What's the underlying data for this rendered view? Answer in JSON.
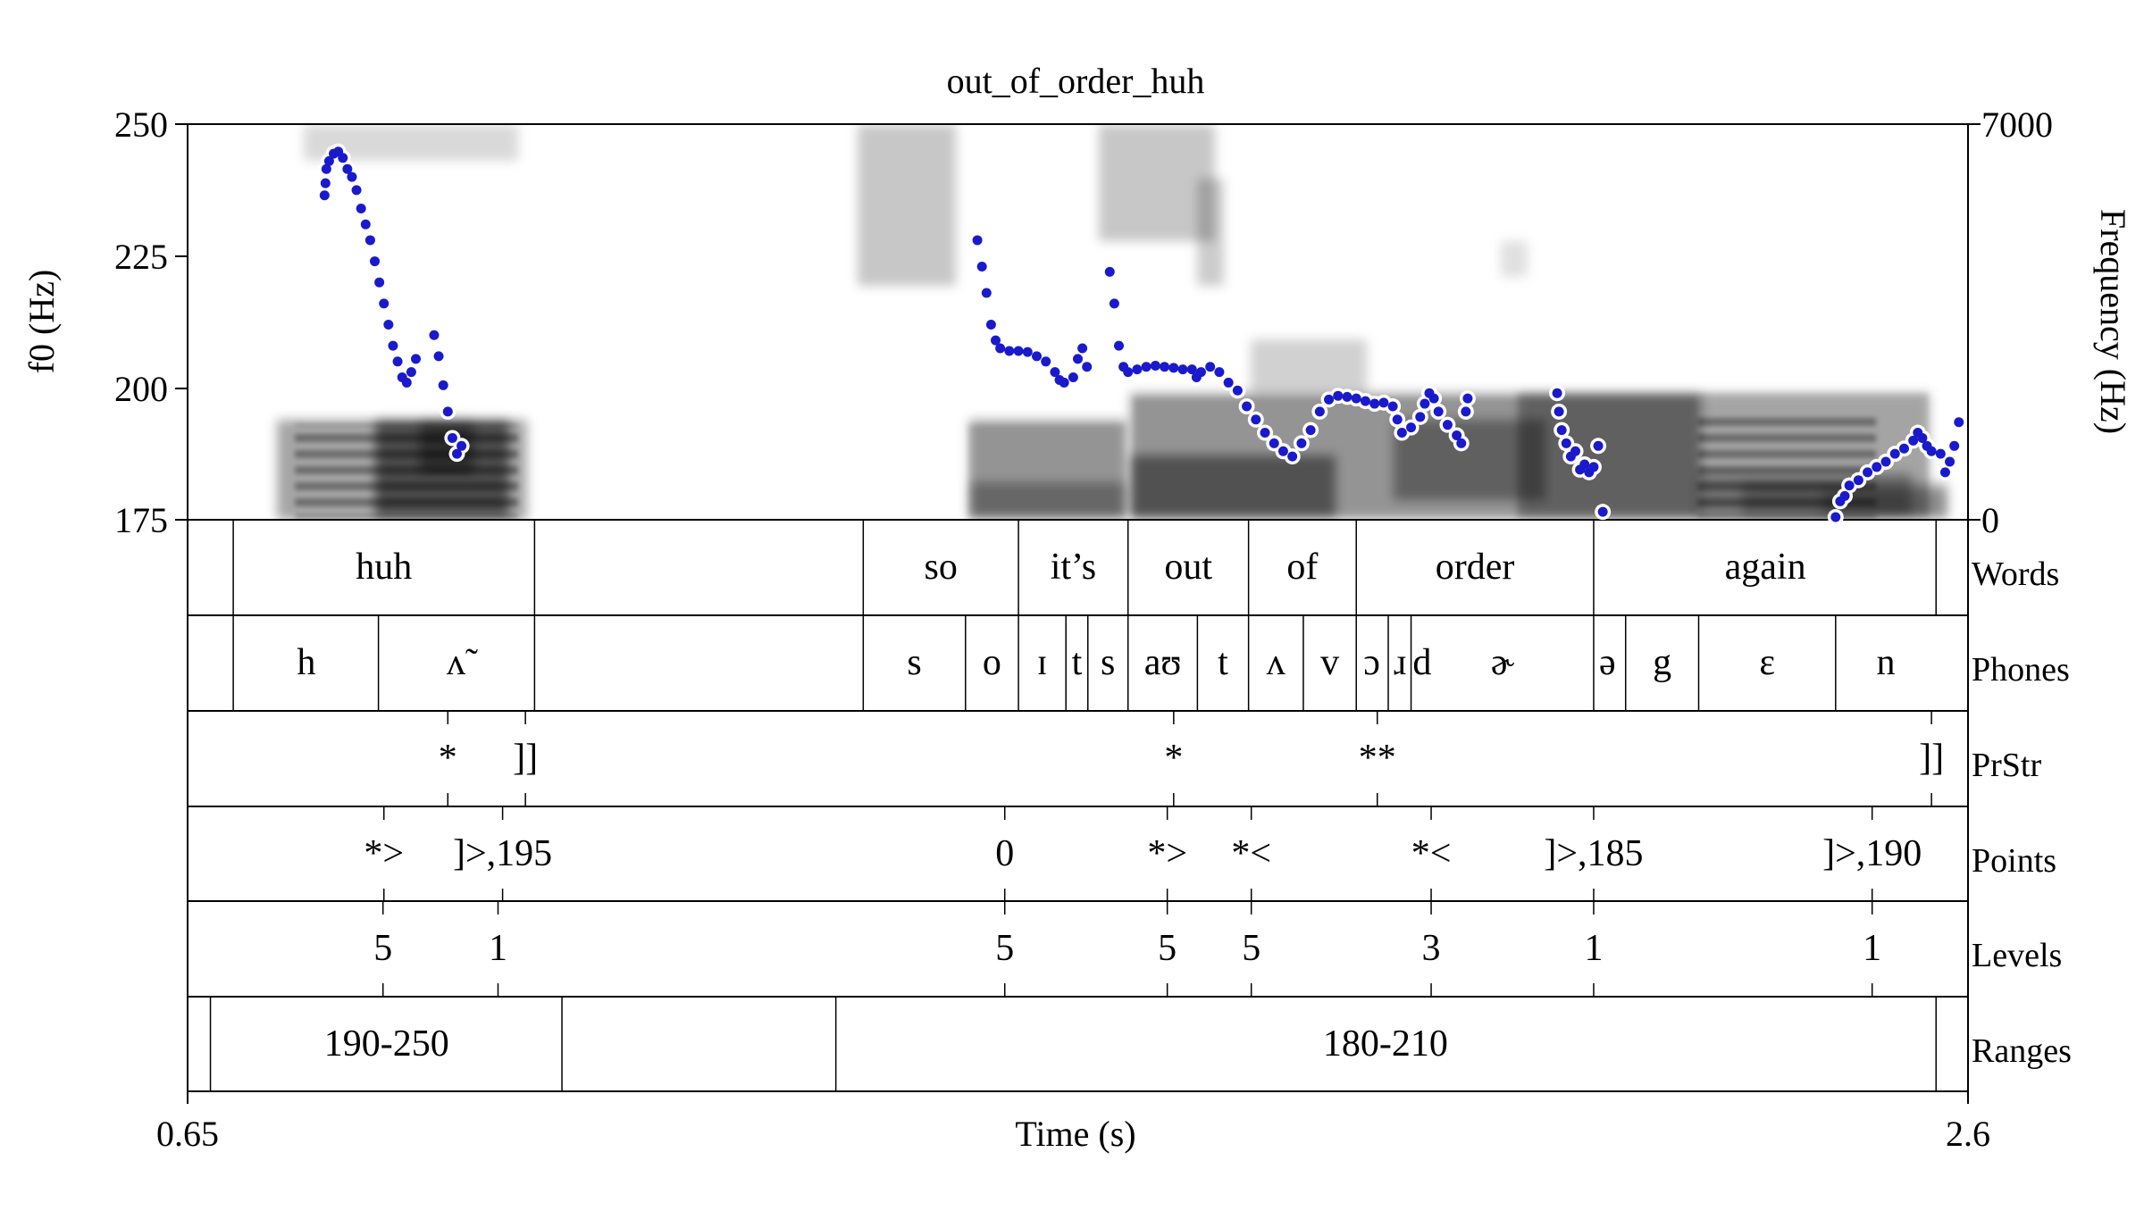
{
  "chart_data": {
    "type": "line",
    "title": "out_of_order_huh",
    "xlabel": "Time (s)",
    "ylabel": "f0 (Hz)",
    "ylabel_right": "Frequency (Hz)",
    "xlim": [
      0.65,
      2.6
    ],
    "ylim": [
      175,
      250
    ],
    "ylim_right": [
      0,
      7000
    ],
    "x_ticks": [
      "0.65",
      "2.6"
    ],
    "y_ticks": [
      "175",
      "200",
      "225",
      "250"
    ],
    "y_ticks_right": [
      "0",
      "7000"
    ],
    "series_color": "#1a1acc",
    "f0_segments": [
      [
        [
          0.8,
          236.5
        ],
        [
          0.801,
          238.8
        ],
        [
          0.802,
          241.5
        ],
        [
          0.805,
          243.0
        ],
        [
          0.81,
          244.4
        ],
        [
          0.815,
          244.8
        ],
        [
          0.82,
          243.6
        ],
        [
          0.825,
          241.5
        ],
        [
          0.83,
          240.0
        ],
        [
          0.835,
          237.5
        ],
        [
          0.84,
          234.0
        ],
        [
          0.845,
          231.0
        ],
        [
          0.85,
          228.0
        ],
        [
          0.855,
          224.0
        ],
        [
          0.86,
          220.0
        ],
        [
          0.865,
          216.0
        ],
        [
          0.87,
          212.0
        ],
        [
          0.875,
          208.0
        ],
        [
          0.88,
          205.0
        ],
        [
          0.885,
          202.0
        ],
        [
          0.89,
          201.0
        ],
        [
          0.895,
          203.0
        ],
        [
          0.9,
          205.5
        ]
      ],
      [
        [
          0.92,
          210.0
        ],
        [
          0.925,
          206.0
        ],
        [
          0.93,
          200.5
        ],
        [
          0.935,
          195.5
        ],
        [
          0.94,
          190.5
        ],
        [
          0.945,
          187.5
        ],
        [
          0.95,
          189.0
        ]
      ],
      [
        [
          1.515,
          228.0
        ],
        [
          1.52,
          223.0
        ],
        [
          1.525,
          218.0
        ],
        [
          1.53,
          212.0
        ],
        [
          1.535,
          209.0
        ],
        [
          1.54,
          207.5
        ],
        [
          1.55,
          207.0
        ],
        [
          1.56,
          207.0
        ],
        [
          1.57,
          206.8
        ],
        [
          1.58,
          206.0
        ],
        [
          1.59,
          205.0
        ],
        [
          1.6,
          203.0
        ],
        [
          1.605,
          201.5
        ],
        [
          1.61,
          201.0
        ],
        [
          1.62,
          202.0
        ],
        [
          1.625,
          205.5
        ],
        [
          1.63,
          207.5
        ],
        [
          1.635,
          204.0
        ]
      ],
      [
        [
          1.66,
          222.0
        ],
        [
          1.665,
          216.0
        ],
        [
          1.67,
          208.0
        ],
        [
          1.675,
          204.0
        ],
        [
          1.68,
          203.0
        ],
        [
          1.69,
          203.5
        ],
        [
          1.7,
          204.0
        ],
        [
          1.71,
          204.2
        ],
        [
          1.72,
          204.0
        ],
        [
          1.73,
          203.8
        ],
        [
          1.74,
          203.5
        ],
        [
          1.75,
          203.5
        ],
        [
          1.755,
          202.0
        ],
        [
          1.76,
          203.0
        ],
        [
          1.77,
          204.0
        ],
        [
          1.78,
          203.0
        ],
        [
          1.79,
          201.0
        ],
        [
          1.8,
          199.5
        ],
        [
          1.81,
          196.5
        ],
        [
          1.82,
          194.0
        ],
        [
          1.83,
          191.5
        ],
        [
          1.84,
          189.5
        ],
        [
          1.85,
          188.0
        ],
        [
          1.86,
          187.0
        ],
        [
          1.87,
          189.5
        ],
        [
          1.88,
          192.0
        ],
        [
          1.89,
          195.5
        ],
        [
          1.9,
          197.8
        ],
        [
          1.91,
          198.5
        ],
        [
          1.92,
          198.3
        ],
        [
          1.93,
          198.0
        ],
        [
          1.94,
          197.5
        ],
        [
          1.95,
          197.0
        ],
        [
          1.96,
          197.2
        ],
        [
          1.97,
          196.5
        ],
        [
          1.975,
          194.0
        ],
        [
          1.98,
          191.5
        ],
        [
          1.99,
          192.5
        ],
        [
          2.0,
          194.5
        ],
        [
          2.005,
          197.0
        ],
        [
          2.01,
          199.0
        ],
        [
          2.015,
          198.0
        ],
        [
          2.02,
          195.5
        ],
        [
          2.03,
          193.0
        ],
        [
          2.04,
          191.0
        ],
        [
          2.045,
          189.5
        ],
        [
          2.05,
          195.5
        ],
        [
          2.052,
          198.0
        ]
      ],
      [
        [
          2.15,
          199.0
        ],
        [
          2.152,
          195.5
        ],
        [
          2.155,
          192.0
        ],
        [
          2.16,
          189.5
        ],
        [
          2.165,
          187.0
        ],
        [
          2.17,
          188.0
        ],
        [
          2.175,
          184.5
        ],
        [
          2.18,
          185.5
        ],
        [
          2.185,
          184.0
        ],
        [
          2.19,
          185.0
        ],
        [
          2.195,
          189.0
        ],
        [
          2.2,
          176.5
        ]
      ],
      [
        [
          2.455,
          175.5
        ],
        [
          2.46,
          178.5
        ],
        [
          2.465,
          179.5
        ],
        [
          2.47,
          181.5
        ],
        [
          2.48,
          182.5
        ],
        [
          2.49,
          184.0
        ],
        [
          2.5,
          185.0
        ],
        [
          2.51,
          186.0
        ],
        [
          2.52,
          187.5
        ],
        [
          2.53,
          188.5
        ],
        [
          2.54,
          190.0
        ],
        [
          2.545,
          191.5
        ],
        [
          2.55,
          190.5
        ],
        [
          2.555,
          189.0
        ],
        [
          2.56,
          188.0
        ],
        [
          2.57,
          187.5
        ],
        [
          2.575,
          184.0
        ],
        [
          2.58,
          186.0
        ],
        [
          2.585,
          189.0
        ],
        [
          2.59,
          193.5
        ]
      ]
    ]
  },
  "tiers": [
    {
      "name": "Words",
      "type": "interval",
      "boundaries": [
        0.7,
        1.03,
        1.39,
        1.56,
        1.68,
        1.812,
        1.93,
        2.19,
        2.565
      ],
      "labels": [
        {
          "x": 0.865,
          "text": "huh"
        },
        {
          "x": 1.475,
          "text": "so"
        },
        {
          "x": 1.62,
          "text": "it’s"
        },
        {
          "x": 1.746,
          "text": "out"
        },
        {
          "x": 1.871,
          "text": "of"
        },
        {
          "x": 2.06,
          "text": "order"
        },
        {
          "x": 2.378,
          "text": "again"
        }
      ]
    },
    {
      "name": "Phones",
      "type": "interval",
      "boundaries": [
        0.7,
        0.859,
        1.03,
        1.39,
        1.502,
        1.56,
        1.612,
        1.636,
        1.68,
        1.756,
        1.812,
        1.872,
        1.93,
        1.965,
        1.99,
        2.19,
        2.225,
        2.305,
        2.455
      ],
      "labels": [
        {
          "x": 0.78,
          "text": "h"
        },
        {
          "x": 0.944,
          "text": "ʌ̃"
        },
        {
          "x": 1.446,
          "text": "s"
        },
        {
          "x": 1.531,
          "text": "o"
        },
        {
          "x": 1.586,
          "text": "ɪ"
        },
        {
          "x": 1.624,
          "text": "t"
        },
        {
          "x": 1.658,
          "text": "s"
        },
        {
          "x": 1.718,
          "text": "aʊ"
        },
        {
          "x": 1.784,
          "text": "t"
        },
        {
          "x": 1.842,
          "text": "ʌ"
        },
        {
          "x": 1.901,
          "text": "v"
        },
        {
          "x": 1.947,
          "text": "ɔ"
        },
        {
          "x": 1.978,
          "text": "ɹ"
        },
        {
          "x": 2.002,
          "text": "d"
        },
        {
          "x": 2.09,
          "text": "ɚ"
        },
        {
          "x": 2.205,
          "text": "ə"
        },
        {
          "x": 2.265,
          "text": "g"
        },
        {
          "x": 2.38,
          "text": "ɛ"
        },
        {
          "x": 2.51,
          "text": "n"
        }
      ]
    },
    {
      "name": "PrStr",
      "type": "point",
      "marks": [
        {
          "x": 0.935,
          "text": "*"
        },
        {
          "x": 1.02,
          "text": "]]"
        },
        {
          "x": 1.73,
          "text": "*"
        },
        {
          "x": 1.953,
          "text": "**"
        },
        {
          "x": 2.56,
          "text": "]]"
        }
      ]
    },
    {
      "name": "Points",
      "type": "point",
      "marks": [
        {
          "x": 0.865,
          "text": "*>"
        },
        {
          "x": 0.995,
          "text": "]>,195"
        },
        {
          "x": 1.545,
          "text": "0"
        },
        {
          "x": 1.723,
          "text": "*>"
        },
        {
          "x": 1.815,
          "text": "*<"
        },
        {
          "x": 2.012,
          "text": "*<"
        },
        {
          "x": 2.19,
          "text": "]>,185"
        },
        {
          "x": 2.495,
          "text": "]>,190"
        }
      ]
    },
    {
      "name": "Levels",
      "type": "point",
      "marks": [
        {
          "x": 0.864,
          "text": "5"
        },
        {
          "x": 0.99,
          "text": "1"
        },
        {
          "x": 1.545,
          "text": "5"
        },
        {
          "x": 1.723,
          "text": "5"
        },
        {
          "x": 1.815,
          "text": "5"
        },
        {
          "x": 2.012,
          "text": "3"
        },
        {
          "x": 2.19,
          "text": "1"
        },
        {
          "x": 2.495,
          "text": "1"
        }
      ]
    },
    {
      "name": "Ranges",
      "type": "interval",
      "boundaries": [
        0.675,
        1.06,
        1.36,
        2.565
      ],
      "labels": [
        {
          "x": 0.868,
          "text": "190-250"
        },
        {
          "x": 1.962,
          "text": "180-210"
        }
      ]
    }
  ]
}
